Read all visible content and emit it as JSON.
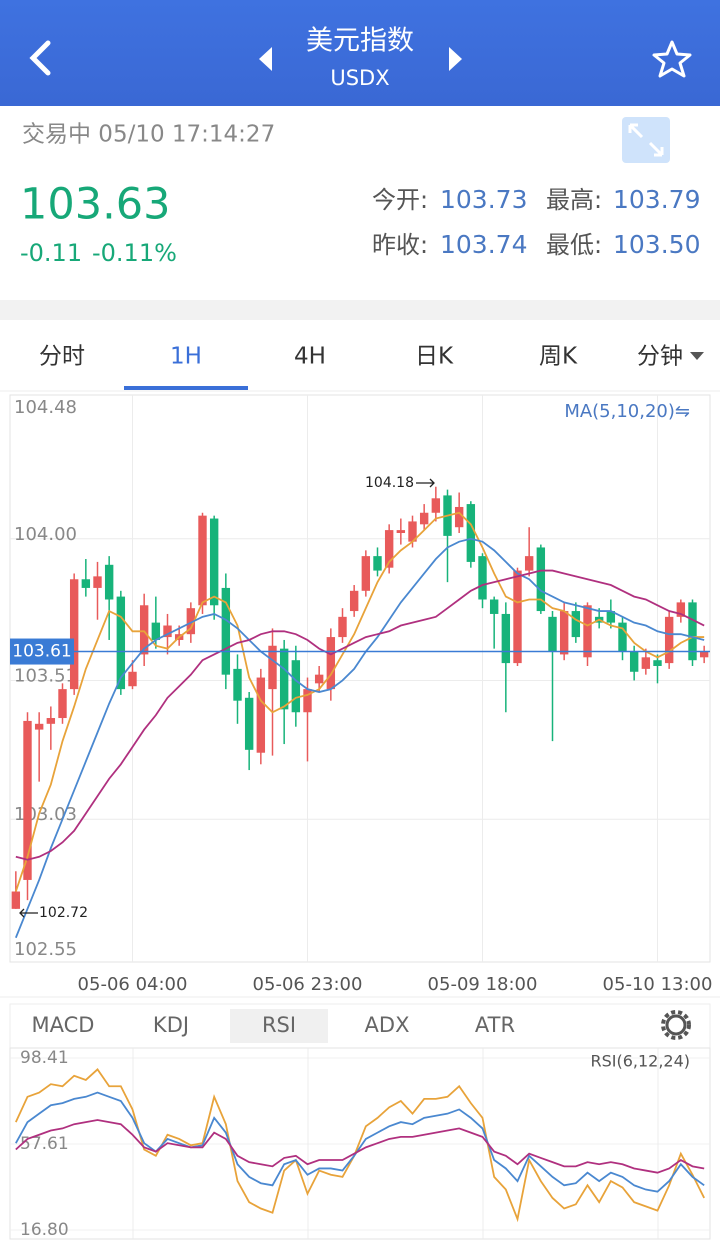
{
  "header": {
    "title": "美元指数",
    "subtitle": "USDX"
  },
  "quote": {
    "status": "交易中 05/10 17:14:27",
    "price": "103.63",
    "change": "-0.11",
    "change_pct": "-0.11%",
    "fields": [
      {
        "label": "今开:",
        "value": "103.73"
      },
      {
        "label": "最高:",
        "value": "103.79"
      },
      {
        "label": "昨收:",
        "value": "103.74"
      },
      {
        "label": "最低:",
        "value": "103.50"
      }
    ]
  },
  "tabs": [
    "分时",
    "1H",
    "4H",
    "日K",
    "周K",
    "分钟"
  ],
  "indicator_tabs": [
    "MACD",
    "KDJ",
    "RSI",
    "ADX",
    "ATR"
  ],
  "chart_data": [
    {
      "type": "candlestick",
      "legend_label": "MA(5,10,20)⇋",
      "categories": [
        null,
        null,
        null,
        null,
        null,
        null,
        null,
        null,
        null,
        null,
        "05-06 04:00",
        null,
        null,
        null,
        null,
        null,
        null,
        null,
        null,
        null,
        null,
        null,
        null,
        null,
        null,
        "05-06 23:00",
        null,
        null,
        null,
        null,
        null,
        null,
        null,
        null,
        null,
        null,
        null,
        null,
        null,
        null,
        "05-09 18:00",
        null,
        null,
        null,
        null,
        null,
        null,
        null,
        null,
        null,
        null,
        null,
        null,
        null,
        null,
        "05-10 13:00",
        null,
        null,
        null,
        null
      ],
      "open": [
        102.72,
        102.82,
        103.34,
        103.36,
        103.38,
        103.48,
        103.86,
        103.83,
        103.91,
        103.8,
        103.49,
        103.6,
        103.71,
        103.66,
        103.65,
        103.67,
        103.77,
        104.07,
        103.83,
        103.55,
        103.45,
        103.26,
        103.48,
        103.62,
        103.58,
        103.4,
        103.5,
        103.48,
        103.66,
        103.75,
        103.82,
        103.94,
        103.9,
        104.02,
        103.99,
        104.05,
        104.09,
        104.15,
        104.04,
        104.12,
        103.94,
        103.79,
        103.74,
        103.57,
        103.89,
        103.97,
        103.73,
        103.6,
        103.75,
        103.59,
        103.73,
        103.75,
        103.71,
        103.61,
        103.55,
        103.58,
        103.57,
        103.73,
        103.78,
        103.59
      ],
      "high": [
        102.85,
        103.4,
        103.4,
        103.42,
        103.5,
        103.88,
        103.93,
        103.92,
        103.94,
        103.82,
        103.58,
        103.81,
        103.8,
        103.74,
        103.7,
        103.78,
        104.09,
        104.08,
        103.88,
        103.6,
        103.47,
        103.55,
        103.69,
        103.65,
        103.63,
        103.52,
        103.56,
        103.69,
        103.76,
        103.84,
        103.96,
        103.97,
        104.05,
        104.07,
        104.08,
        104.12,
        104.18,
        104.17,
        104.16,
        104.13,
        103.95,
        103.8,
        103.78,
        103.9,
        104.04,
        103.98,
        103.75,
        103.78,
        103.78,
        103.78,
        103.76,
        103.79,
        103.73,
        103.63,
        103.62,
        103.6,
        103.75,
        103.79,
        103.79,
        103.63
      ],
      "low": [
        102.72,
        102.75,
        103.16,
        103.27,
        103.36,
        103.46,
        103.8,
        103.72,
        103.65,
        103.46,
        103.48,
        103.56,
        103.62,
        103.6,
        103.63,
        103.64,
        103.74,
        103.72,
        103.48,
        103.36,
        103.2,
        103.22,
        103.25,
        103.29,
        103.35,
        103.23,
        103.47,
        103.44,
        103.64,
        103.73,
        103.8,
        103.87,
        103.88,
        103.98,
        103.97,
        104.03,
        104.06,
        103.85,
        104.02,
        103.9,
        103.76,
        103.62,
        103.4,
        103.56,
        103.87,
        103.74,
        103.3,
        103.58,
        103.64,
        103.56,
        103.69,
        103.69,
        103.58,
        103.51,
        103.53,
        103.5,
        103.55,
        103.71,
        103.56,
        103.57
      ],
      "close": [
        102.78,
        103.37,
        103.36,
        103.38,
        103.48,
        103.86,
        103.83,
        103.87,
        103.79,
        103.48,
        103.54,
        103.77,
        103.65,
        103.7,
        103.67,
        103.76,
        104.08,
        103.77,
        103.53,
        103.44,
        103.27,
        103.52,
        103.63,
        103.41,
        103.4,
        103.48,
        103.53,
        103.66,
        103.73,
        103.82,
        103.94,
        103.89,
        104.03,
        104.03,
        104.06,
        104.09,
        104.14,
        104.01,
        104.11,
        103.92,
        103.79,
        103.74,
        103.57,
        103.89,
        103.94,
        103.75,
        103.61,
        103.75,
        103.66,
        103.77,
        103.71,
        103.71,
        103.61,
        103.54,
        103.59,
        103.56,
        103.73,
        103.78,
        103.58,
        103.61
      ],
      "up_color": "#e85a5a",
      "down_color": "#17b37a",
      "lines": [
        {
          "color": "#e8a33a",
          "values": [
            102.78,
            102.9,
            103.05,
            103.15,
            103.3,
            103.42,
            103.55,
            103.65,
            103.75,
            103.73,
            103.68,
            103.68,
            103.63,
            103.62,
            103.66,
            103.69,
            103.78,
            103.8,
            103.78,
            103.7,
            103.52,
            103.44,
            103.4,
            103.42,
            103.45,
            103.46,
            103.48,
            103.53,
            103.6,
            103.67,
            103.76,
            103.85,
            103.92,
            103.96,
            103.99,
            104.03,
            104.07,
            104.08,
            104.09,
            104.05,
            103.97,
            103.88,
            103.8,
            103.78,
            103.79,
            103.79,
            103.76,
            103.75,
            103.72,
            103.7,
            103.72,
            103.7,
            103.69,
            103.64,
            103.61,
            103.59,
            103.61,
            103.64,
            103.66,
            103.66
          ]
        },
        {
          "color": "#4a88d0",
          "values": [
            102.62,
            102.72,
            102.82,
            102.93,
            103.03,
            103.13,
            103.23,
            103.33,
            103.43,
            103.52,
            103.57,
            103.62,
            103.65,
            103.67,
            103.69,
            103.71,
            103.73,
            103.74,
            103.72,
            103.69,
            103.65,
            103.61,
            103.58,
            103.55,
            103.51,
            103.48,
            103.47,
            103.48,
            103.51,
            103.55,
            103.61,
            103.66,
            103.72,
            103.78,
            103.83,
            103.88,
            103.93,
            103.97,
            103.99,
            104.0,
            103.99,
            103.96,
            103.92,
            103.88,
            103.86,
            103.82,
            103.8,
            103.78,
            103.77,
            103.76,
            103.75,
            103.75,
            103.73,
            103.71,
            103.7,
            103.68,
            103.67,
            103.67,
            103.66,
            103.65
          ]
        },
        {
          "color": "#b0307f",
          "values": [
            102.9,
            102.89,
            102.9,
            102.92,
            102.95,
            102.99,
            103.05,
            103.11,
            103.17,
            103.22,
            103.28,
            103.34,
            103.39,
            103.45,
            103.49,
            103.53,
            103.58,
            103.6,
            103.62,
            103.64,
            103.65,
            103.67,
            103.68,
            103.68,
            103.67,
            103.65,
            103.62,
            103.6,
            103.62,
            103.64,
            103.66,
            103.67,
            103.68,
            103.7,
            103.71,
            103.72,
            103.73,
            103.76,
            103.79,
            103.82,
            103.84,
            103.85,
            103.86,
            103.87,
            103.88,
            103.89,
            103.89,
            103.88,
            103.87,
            103.86,
            103.85,
            103.84,
            103.82,
            103.8,
            103.79,
            103.77,
            103.75,
            103.74,
            103.72,
            103.7
          ]
        }
      ],
      "last_price": 103.61,
      "last_color": "#3a7bd5",
      "annotations": {
        "high": "104.18",
        "low": "102.72"
      },
      "ylim": [
        102.55,
        104.48
      ],
      "yticks": [
        102.55,
        103.03,
        103.51,
        {
          "value": 104,
          "label": "104.00"
        },
        104.48
      ],
      "grid": true
    },
    {
      "type": "line",
      "legend_label": "RSI(6,12,24)",
      "series": [
        {
          "color": "#e8a33a",
          "values": [
            68,
            80,
            82,
            86,
            85,
            90,
            88,
            93,
            85,
            85,
            74,
            55,
            52,
            62,
            60,
            57,
            58,
            80,
            67,
            40,
            30,
            27,
            25,
            45,
            50,
            34,
            45,
            43,
            42,
            52,
            66,
            70,
            75,
            78,
            72,
            79,
            79,
            80,
            85,
            77,
            70,
            42,
            36,
            22,
            50,
            40,
            32,
            27,
            29,
            38,
            30,
            40,
            37,
            30,
            28,
            26,
            38,
            53,
            43,
            32
          ]
        },
        {
          "color": "#4a88d0",
          "values": [
            58,
            68,
            72,
            76,
            77,
            79,
            80,
            82,
            80,
            78,
            70,
            58,
            54,
            60,
            58,
            56,
            57,
            70,
            63,
            48,
            42,
            39,
            38,
            48,
            50,
            43,
            46,
            46,
            45,
            52,
            60,
            63,
            66,
            68,
            67,
            70,
            71,
            72,
            74,
            70,
            65,
            50,
            46,
            40,
            52,
            47,
            42,
            38,
            39,
            44,
            40,
            44,
            42,
            38,
            36,
            35,
            40,
            48,
            42,
            38
          ]
        },
        {
          "color": "#b0307f",
          "values": [
            55,
            60,
            62,
            64,
            65,
            67,
            68,
            69,
            68,
            67,
            62,
            56,
            54,
            58,
            57,
            56,
            56,
            63,
            60,
            52,
            49,
            48,
            47,
            51,
            52,
            48,
            50,
            50,
            50,
            53,
            56,
            58,
            60,
            61,
            61,
            62,
            63,
            64,
            65,
            63,
            61,
            54,
            52,
            48,
            53,
            51,
            49,
            47,
            47,
            49,
            48,
            49,
            48,
            46,
            45,
            44,
            46,
            50,
            47,
            46
          ]
        }
      ],
      "ylim": [
        16.8,
        98.41
      ],
      "yticks": [
        {
          "value": 16.8,
          "label": "16.80"
        },
        57.61,
        98.41
      ],
      "grid": true
    }
  ]
}
